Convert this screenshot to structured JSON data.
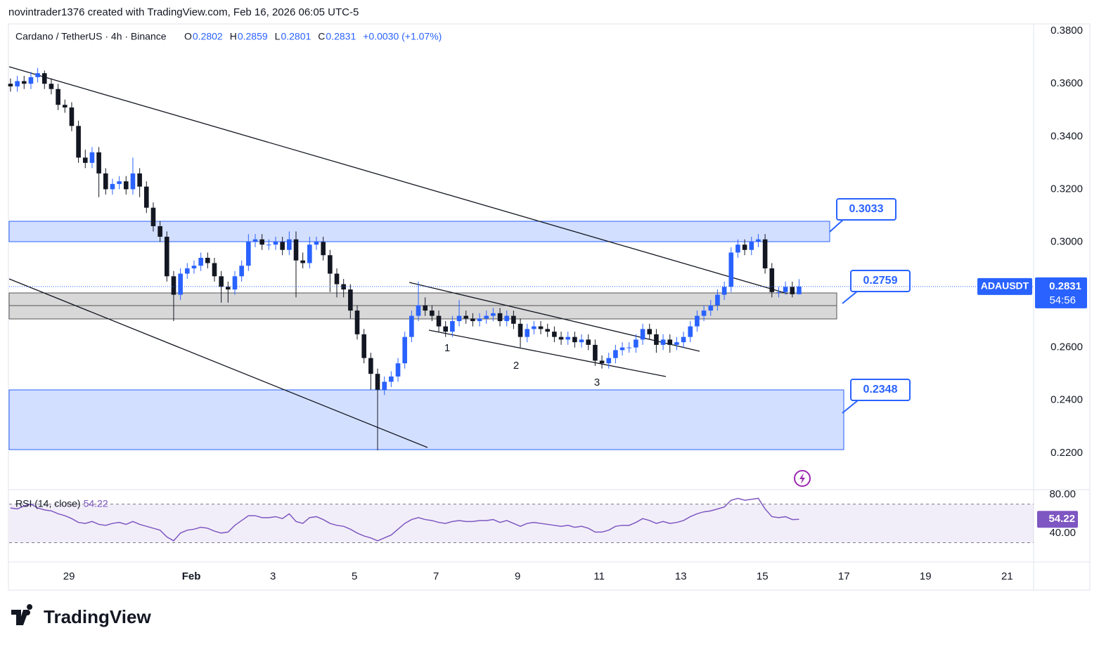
{
  "header": {
    "credit": "novintrader1376 created with TradingView.com, Feb 16, 2026 06:05 UTC-5",
    "symbol": "Cardano / TetherUS · 4h · Binance",
    "ohlc": [
      {
        "label": "O",
        "value": "0.2802"
      },
      {
        "label": "H",
        "value": "0.2859"
      },
      {
        "label": "L",
        "value": "0.2801"
      },
      {
        "label": "C",
        "value": "0.2831"
      }
    ],
    "change": "+0.0030 (+1.07%)",
    "ticker": "ADAUSDT",
    "countdown": "54:56"
  },
  "footer": "TradingView",
  "chart_data": [
    {
      "type": "candlestick",
      "color_up": "#2962ff",
      "color_down": "#131722",
      "open": [
        0.36,
        0.359,
        0.361,
        0.36,
        0.3625,
        0.364,
        0.36,
        0.358,
        0.352,
        0.351,
        0.344,
        0.332,
        0.33,
        0.334,
        0.326,
        0.32,
        0.322,
        0.323,
        0.32,
        0.326,
        0.321,
        0.313,
        0.306,
        0.302,
        0.287,
        0.28,
        0.288,
        0.29,
        0.291,
        0.294,
        0.292,
        0.287,
        0.283,
        0.282,
        0.287,
        0.291,
        0.3,
        0.301,
        0.299,
        0.299,
        0.3,
        0.297,
        0.301,
        0.293,
        0.292,
        0.299,
        0.3,
        0.295,
        0.288,
        0.284,
        0.282,
        0.274,
        0.265,
        0.256,
        0.25,
        0.244,
        0.247,
        0.249,
        0.254,
        0.264,
        0.272,
        0.276,
        0.274,
        0.272,
        0.268,
        0.266,
        0.27,
        0.272,
        0.271,
        0.27,
        0.271,
        0.272,
        0.273,
        0.27,
        0.272,
        0.269,
        0.264,
        0.267,
        0.268,
        0.267,
        0.266,
        0.264,
        0.263,
        0.264,
        0.262,
        0.263,
        0.261,
        0.255,
        0.254,
        0.256,
        0.259,
        0.26,
        0.26,
        0.263,
        0.267,
        0.265,
        0.261,
        0.263,
        0.261,
        0.262,
        0.264,
        0.268,
        0.272,
        0.274,
        0.276,
        0.28,
        0.283,
        0.296,
        0.299,
        0.297,
        0.3,
        0.301,
        0.29,
        0.281,
        0.281,
        0.283,
        0.2802
      ],
      "high": [
        0.362,
        0.363,
        0.363,
        0.3645,
        0.366,
        0.365,
        0.362,
        0.36,
        0.354,
        0.353,
        0.346,
        0.335,
        0.336,
        0.336,
        0.328,
        0.324,
        0.325,
        0.325,
        0.332,
        0.328,
        0.323,
        0.315,
        0.308,
        0.304,
        0.289,
        0.29,
        0.292,
        0.293,
        0.296,
        0.296,
        0.294,
        0.289,
        0.285,
        0.289,
        0.293,
        0.303,
        0.303,
        0.303,
        0.301,
        0.302,
        0.302,
        0.304,
        0.304,
        0.296,
        0.302,
        0.302,
        0.302,
        0.297,
        0.29,
        0.286,
        0.284,
        0.276,
        0.267,
        0.258,
        0.252,
        0.249,
        0.251,
        0.256,
        0.266,
        0.274,
        0.285,
        0.279,
        0.276,
        0.274,
        0.27,
        0.272,
        0.278,
        0.274,
        0.273,
        0.273,
        0.274,
        0.275,
        0.275,
        0.274,
        0.274,
        0.271,
        0.269,
        0.27,
        0.27,
        0.269,
        0.268,
        0.266,
        0.266,
        0.266,
        0.265,
        0.265,
        0.263,
        0.257,
        0.258,
        0.261,
        0.262,
        0.262,
        0.265,
        0.269,
        0.269,
        0.267,
        0.265,
        0.265,
        0.264,
        0.266,
        0.27,
        0.274,
        0.276,
        0.278,
        0.282,
        0.285,
        0.298,
        0.301,
        0.301,
        0.302,
        0.303,
        0.303,
        0.292,
        0.283,
        0.285,
        0.285,
        0.2859
      ],
      "low": [
        0.357,
        0.357,
        0.358,
        0.358,
        0.3605,
        0.358,
        0.356,
        0.35,
        0.349,
        0.342,
        0.33,
        0.328,
        0.328,
        0.317,
        0.318,
        0.318,
        0.32,
        0.318,
        0.318,
        0.317,
        0.311,
        0.304,
        0.3,
        0.285,
        0.27,
        0.278,
        0.286,
        0.288,
        0.289,
        0.29,
        0.285,
        0.277,
        0.277,
        0.28,
        0.285,
        0.289,
        0.298,
        0.297,
        0.297,
        0.297,
        0.295,
        0.295,
        0.279,
        0.29,
        0.29,
        0.297,
        0.293,
        0.281,
        0.279,
        0.279,
        0.271,
        0.263,
        0.254,
        0.244,
        0.221,
        0.242,
        0.245,
        0.247,
        0.252,
        0.262,
        0.27,
        0.272,
        0.27,
        0.266,
        0.264,
        0.264,
        0.268,
        0.269,
        0.268,
        0.268,
        0.269,
        0.27,
        0.268,
        0.268,
        0.267,
        0.26,
        0.262,
        0.265,
        0.265,
        0.264,
        0.262,
        0.261,
        0.261,
        0.26,
        0.26,
        0.259,
        0.253,
        0.252,
        0.252,
        0.254,
        0.257,
        0.258,
        0.258,
        0.261,
        0.263,
        0.258,
        0.259,
        0.258,
        0.259,
        0.26,
        0.262,
        0.266,
        0.27,
        0.272,
        0.274,
        0.278,
        0.281,
        0.294,
        0.295,
        0.295,
        0.298,
        0.288,
        0.279,
        0.279,
        0.28,
        0.279,
        0.2801
      ],
      "close": [
        0.359,
        0.361,
        0.36,
        0.3625,
        0.364,
        0.36,
        0.358,
        0.352,
        0.351,
        0.344,
        0.332,
        0.33,
        0.334,
        0.326,
        0.32,
        0.322,
        0.323,
        0.32,
        0.326,
        0.321,
        0.313,
        0.306,
        0.302,
        0.287,
        0.28,
        0.288,
        0.29,
        0.291,
        0.294,
        0.292,
        0.287,
        0.283,
        0.282,
        0.287,
        0.291,
        0.3,
        0.301,
        0.299,
        0.299,
        0.3,
        0.297,
        0.301,
        0.293,
        0.292,
        0.299,
        0.3,
        0.295,
        0.288,
        0.284,
        0.282,
        0.274,
        0.265,
        0.256,
        0.25,
        0.244,
        0.247,
        0.249,
        0.254,
        0.264,
        0.272,
        0.276,
        0.274,
        0.272,
        0.268,
        0.266,
        0.27,
        0.272,
        0.271,
        0.27,
        0.271,
        0.272,
        0.273,
        0.27,
        0.272,
        0.269,
        0.264,
        0.267,
        0.268,
        0.267,
        0.266,
        0.264,
        0.263,
        0.264,
        0.262,
        0.263,
        0.261,
        0.255,
        0.254,
        0.256,
        0.259,
        0.26,
        0.26,
        0.263,
        0.267,
        0.265,
        0.261,
        0.263,
        0.261,
        0.262,
        0.264,
        0.268,
        0.272,
        0.274,
        0.276,
        0.28,
        0.283,
        0.296,
        0.299,
        0.297,
        0.3,
        0.301,
        0.29,
        0.281,
        0.281,
        0.283,
        0.2802,
        0.2831
      ],
      "ylim": [
        0.2061,
        0.3827
      ],
      "yticks": [
        {
          "value": 0.22,
          "label": "0.2200"
        },
        {
          "value": 0.24,
          "label": "0.2400"
        },
        {
          "value": 0.26,
          "label": "0.2600"
        },
        {
          "value": 0.28,
          "label": "0.2800"
        },
        {
          "value": 0.3,
          "label": "0.3000"
        },
        {
          "value": 0.32,
          "label": "0.3200"
        },
        {
          "value": 0.34,
          "label": "0.3400"
        },
        {
          "value": 0.36,
          "label": "0.3600"
        },
        {
          "value": 0.38,
          "label": "0.3800"
        }
      ],
      "xlim": [
        -0.2,
        150.5
      ],
      "xticks": [
        {
          "value": 8.6,
          "label": "29"
        },
        {
          "value": 26.6,
          "label": "Feb"
        },
        {
          "value": 38.6,
          "label": "3"
        },
        {
          "value": 50.6,
          "label": "5"
        },
        {
          "value": 62.6,
          "label": "7"
        },
        {
          "value": 74.6,
          "label": "9"
        },
        {
          "value": 86.6,
          "label": "11"
        },
        {
          "value": 98.6,
          "label": "13"
        },
        {
          "value": 110.6,
          "label": "15"
        },
        {
          "value": 122.6,
          "label": "17"
        },
        {
          "value": 134.6,
          "label": "19"
        },
        {
          "value": 146.6,
          "label": "21"
        }
      ],
      "annotations": [
        "1",
        "2",
        "3"
      ],
      "callouts": [
        "0.3033",
        "0.2759",
        "0.2348"
      ]
    },
    {
      "type": "line",
      "xlim": [
        -0.2,
        150.5
      ],
      "ylim": [
        10,
        85
      ],
      "yticks": [
        {
          "value": 40,
          "label": "40.00"
        },
        {
          "value": 80,
          "label": "80.00"
        }
      ],
      "bands": [
        30,
        70
      ],
      "series": [
        {
          "name": "RSI (14, close)",
          "color": "#7e57c2",
          "values": [
            66,
            65,
            68,
            70,
            66,
            64,
            63,
            60,
            58,
            55,
            51,
            50,
            52,
            49,
            48,
            50,
            51,
            49,
            52,
            49,
            47,
            45,
            43,
            36,
            32,
            40,
            43,
            44,
            46,
            45,
            42,
            40,
            41,
            48,
            53,
            58,
            58,
            56,
            56,
            57,
            55,
            60,
            52,
            50,
            56,
            57,
            54,
            50,
            48,
            47,
            44,
            40,
            37,
            35,
            32,
            35,
            38,
            44,
            50,
            54,
            56,
            54,
            53,
            51,
            50,
            52,
            53,
            52,
            52,
            53,
            53,
            54,
            51,
            53,
            50,
            47,
            50,
            51,
            50,
            49,
            48,
            47,
            48,
            46,
            47,
            45,
            41,
            41,
            43,
            47,
            48,
            48,
            51,
            55,
            53,
            50,
            52,
            50,
            51,
            53,
            57,
            60,
            62,
            63,
            65,
            67,
            74,
            76,
            74,
            75,
            76,
            65,
            57,
            56,
            57,
            54,
            54.22
          ]
        }
      ]
    }
  ]
}
